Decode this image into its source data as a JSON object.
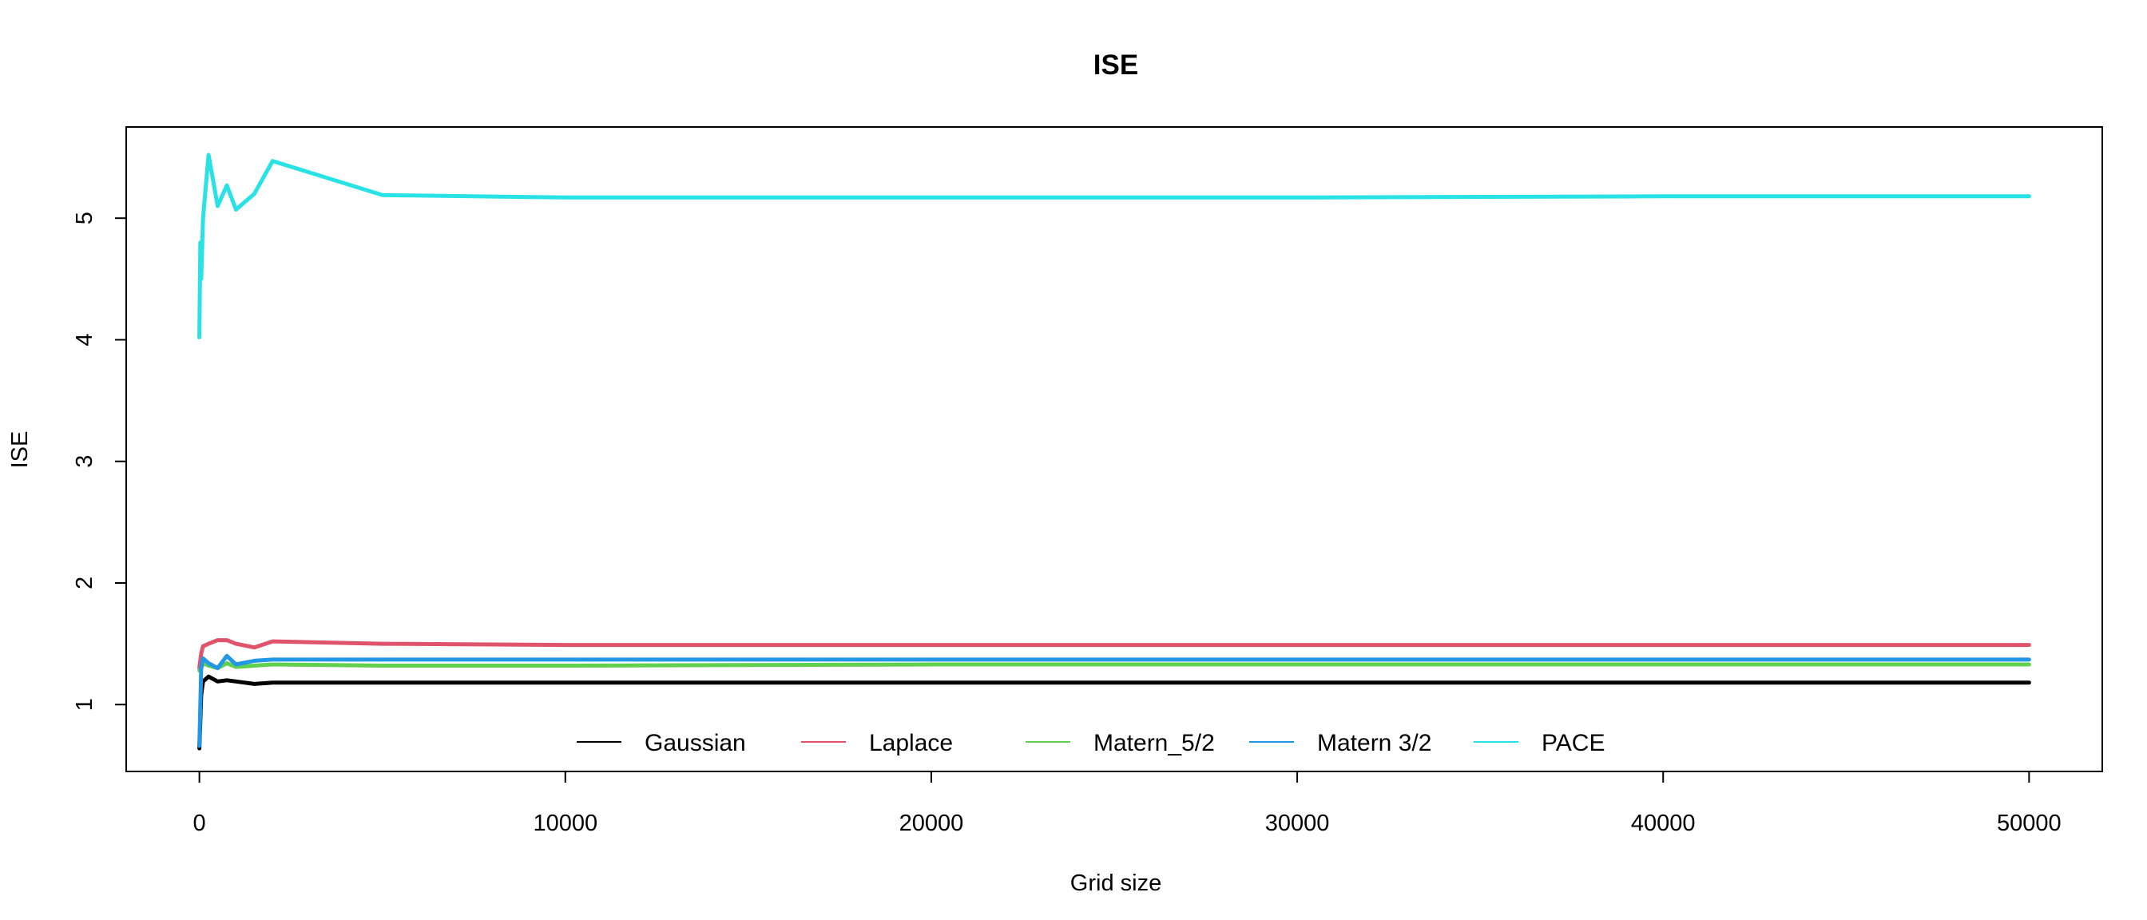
{
  "chart_data": {
    "type": "line",
    "title": "ISE",
    "xlabel": "Grid size",
    "ylabel": "ISE",
    "xlim": [
      -2000,
      52000
    ],
    "ylim": [
      0.45,
      5.75
    ],
    "xticks": [
      0,
      10000,
      20000,
      30000,
      40000,
      50000
    ],
    "yticks": [
      1,
      2,
      3,
      4,
      5
    ],
    "grid": false,
    "legend": "bottom-center",
    "series": [
      {
        "name": "Gaussian",
        "color": "#000000",
        "x": [
          0,
          50,
          100,
          250,
          500,
          750,
          1000,
          1500,
          2000,
          5000,
          10000,
          20000,
          30000,
          40000,
          50000
        ],
        "y": [
          0.64,
          1.08,
          1.19,
          1.23,
          1.19,
          1.2,
          1.19,
          1.17,
          1.18,
          1.18,
          1.18,
          1.18,
          1.18,
          1.18,
          1.18
        ]
      },
      {
        "name": "Laplace",
        "color": "#DF536B",
        "x": [
          0,
          50,
          100,
          250,
          500,
          750,
          1000,
          1500,
          2000,
          5000,
          10000,
          20000,
          30000,
          40000,
          50000
        ],
        "y": [
          1.3,
          1.42,
          1.48,
          1.5,
          1.53,
          1.53,
          1.5,
          1.47,
          1.52,
          1.5,
          1.49,
          1.49,
          1.49,
          1.49,
          1.49
        ]
      },
      {
        "name": "Matern_5/2",
        "color": "#61D04F",
        "x": [
          0,
          50,
          100,
          250,
          500,
          750,
          1000,
          1500,
          2000,
          5000,
          10000,
          20000,
          30000,
          40000,
          50000
        ],
        "y": [
          1.28,
          1.3,
          1.34,
          1.32,
          1.3,
          1.34,
          1.31,
          1.32,
          1.33,
          1.32,
          1.32,
          1.33,
          1.33,
          1.33,
          1.33
        ]
      },
      {
        "name": "Matern 3/2",
        "color": "#2297E6",
        "x": [
          0,
          50,
          100,
          250,
          500,
          750,
          1000,
          1500,
          2000,
          5000,
          10000,
          20000,
          30000,
          40000,
          50000
        ],
        "y": [
          0.66,
          1.3,
          1.38,
          1.34,
          1.3,
          1.4,
          1.33,
          1.36,
          1.37,
          1.37,
          1.37,
          1.37,
          1.37,
          1.37,
          1.37
        ]
      },
      {
        "name": "PACE",
        "color": "#28E2E5",
        "x": [
          0,
          25,
          50,
          100,
          250,
          500,
          750,
          1000,
          1500,
          2000,
          5000,
          10000,
          20000,
          30000,
          40000,
          50000
        ],
        "y": [
          4.02,
          4.8,
          4.5,
          5.0,
          5.52,
          5.1,
          5.27,
          5.07,
          5.2,
          5.47,
          5.19,
          5.17,
          5.17,
          5.17,
          5.18,
          5.18
        ]
      }
    ]
  }
}
